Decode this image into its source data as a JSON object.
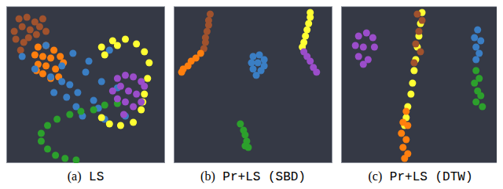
{
  "chart_data": [
    {
      "type": "scatter",
      "title": "(a) LS",
      "xlim": [
        0,
        100
      ],
      "ylim": [
        0,
        100
      ],
      "tick_labels": false,
      "series": [
        {
          "color": "#a0522d",
          "x": [
            8,
            13,
            18,
            23,
            10,
            15,
            21,
            25,
            6,
            11,
            9,
            14,
            19,
            5
          ],
          "y": [
            92,
            93,
            90,
            92,
            87,
            85,
            87,
            84,
            79,
            77,
            72,
            80,
            82,
            84
          ]
        },
        {
          "color": "#ff7f0e",
          "x": [
            20,
            25,
            30,
            18,
            23,
            28,
            34,
            20,
            25,
            31,
            36,
            23,
            28,
            33,
            19
          ],
          "y": [
            74,
            75,
            72,
            69,
            68,
            67,
            68,
            63,
            62,
            60,
            64,
            57,
            54,
            55,
            59
          ]
        },
        {
          "color": "#3a7ec4",
          "x": [
            10,
            18,
            28,
            35,
            40,
            45,
            50,
            55,
            60,
            48,
            38,
            42,
            52,
            58,
            65,
            70,
            30,
            44,
            62,
            75,
            25,
            35
          ],
          "y": [
            68,
            60,
            55,
            62,
            50,
            45,
            58,
            40,
            52,
            30,
            42,
            70,
            65,
            35,
            72,
            48,
            45,
            36,
            28,
            30,
            75,
            52
          ]
        },
        {
          "color": "#2ca02c",
          "x": [
            70,
            62,
            55,
            47,
            40,
            32,
            26,
            22,
            22,
            26,
            31,
            37,
            44
          ],
          "y": [
            38,
            37,
            34,
            33,
            31,
            28,
            24,
            19,
            14,
            9,
            5,
            3,
            2
          ]
        },
        {
          "color": "#ffff33",
          "x": [
            60,
            67,
            75,
            82,
            87,
            90,
            89,
            87,
            85,
            80,
            72,
            65,
            60,
            62,
            70,
            86
          ],
          "y": [
            74,
            78,
            79,
            76,
            71,
            64,
            54,
            44,
            34,
            26,
            24,
            25,
            29,
            69,
            75,
            39
          ]
        },
        {
          "color": "#9b4dca",
          "x": [
            70,
            75,
            80,
            85,
            72,
            77,
            82,
            87,
            70,
            75,
            80,
            85,
            74,
            67
          ],
          "y": [
            54,
            56,
            55,
            52,
            49,
            46,
            44,
            49,
            41,
            39,
            36,
            39,
            31,
            46
          ]
        }
      ]
    },
    {
      "type": "scatter",
      "title": "(b) Pr+LS (SBD)",
      "xlim": [
        0,
        100
      ],
      "ylim": [
        0,
        100
      ],
      "tick_labels": false,
      "series": [
        {
          "color": "#a0522d",
          "x": [
            23,
            22,
            22,
            21,
            20,
            20,
            19
          ],
          "y": [
            95,
            91,
            88,
            84,
            80,
            77,
            73
          ]
        },
        {
          "color": "#ff7f0e",
          "x": [
            17,
            14,
            11,
            9,
            6,
            5
          ],
          "y": [
            70,
            67,
            65,
            62,
            60,
            58
          ]
        },
        {
          "color": "#3a7ec4",
          "x": [
            50,
            54,
            57,
            49,
            53,
            57,
            50,
            55,
            52
          ],
          "y": [
            68,
            69,
            66,
            64,
            64,
            62,
            60,
            59,
            56
          ]
        },
        {
          "color": "#ffff33",
          "x": [
            86,
            86,
            85,
            84,
            83,
            82,
            81
          ],
          "y": [
            96,
            93,
            89,
            85,
            81,
            77,
            74
          ]
        },
        {
          "color": "#9b4dca",
          "x": [
            82,
            84,
            86,
            88,
            90
          ],
          "y": [
            71,
            68,
            65,
            61,
            58
          ]
        },
        {
          "color": "#2ca02c",
          "x": [
            42,
            44,
            45,
            46,
            47,
            45
          ],
          "y": [
            25,
            21,
            18,
            14,
            10,
            11
          ]
        }
      ]
    },
    {
      "type": "scatter",
      "title": "(c) Pr+LS (DTW)",
      "xlim": [
        0,
        100
      ],
      "ylim": [
        0,
        100
      ],
      "tick_labels": false,
      "series": [
        {
          "color": "#9b4dca",
          "x": [
            11,
            16,
            20,
            9,
            14,
            21,
            11,
            17,
            14
          ],
          "y": [
            81,
            83,
            80,
            75,
            74,
            74,
            68,
            66,
            63
          ]
        },
        {
          "color": "#ffff33",
          "x": [
            51,
            50,
            49,
            48,
            47,
            46,
            45,
            44,
            42,
            41,
            40
          ],
          "y": [
            96,
            89,
            81,
            74,
            66,
            59,
            51,
            44,
            36,
            29,
            24
          ]
        },
        {
          "color": "#a0522d",
          "x": [
            48,
            51,
            49,
            47,
            50,
            46
          ],
          "y": [
            95,
            91,
            84,
            76,
            71,
            64
          ]
        },
        {
          "color": "#ff7f0e",
          "x": [
            41,
            39,
            42,
            38,
            41,
            39,
            42,
            40
          ],
          "y": [
            33,
            26,
            24,
            19,
            15,
            10,
            6,
            3
          ]
        },
        {
          "color": "#3a7ec4",
          "x": [
            86,
            84,
            88,
            85,
            87,
            85
          ],
          "y": [
            85,
            80,
            78,
            74,
            70,
            66
          ]
        },
        {
          "color": "#2ca02c",
          "x": [
            85,
            87,
            84,
            86,
            88,
            85,
            89
          ],
          "y": [
            59,
            54,
            51,
            46,
            43,
            39,
            36
          ]
        }
      ]
    }
  ]
}
